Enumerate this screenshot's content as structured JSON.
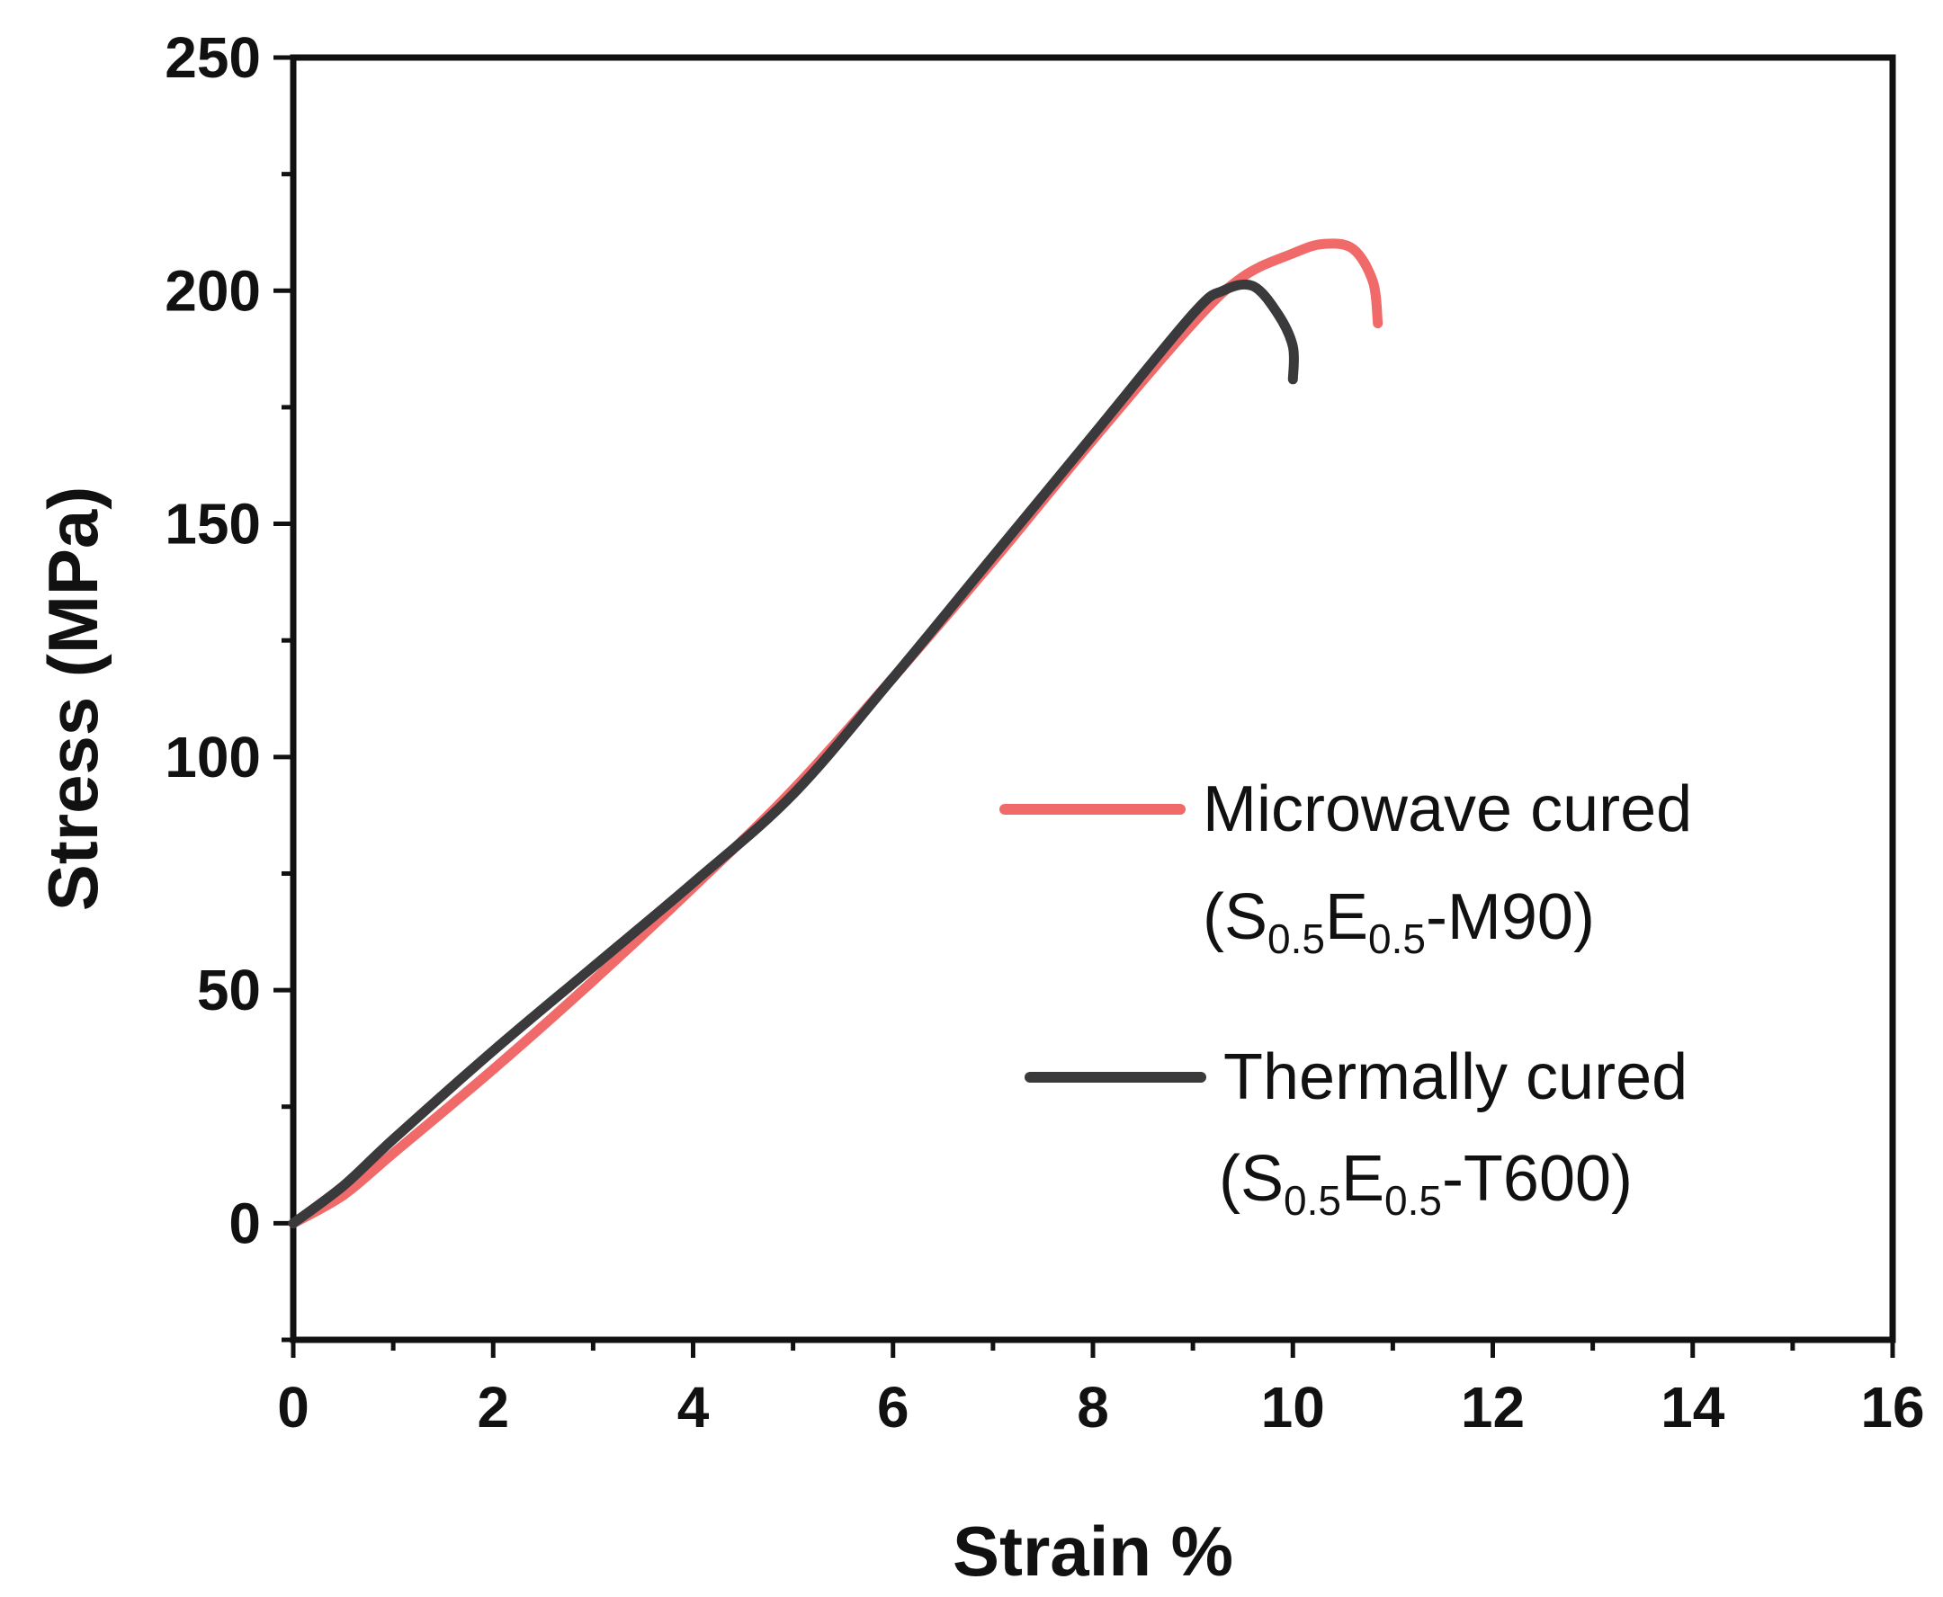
{
  "chart_data": {
    "type": "line",
    "title": "",
    "xlabel": "Strain %",
    "ylabel": "Stress (MPa)",
    "xlim": [
      0,
      16
    ],
    "ylim": [
      -25,
      250
    ],
    "x_ticks": [
      0,
      2,
      4,
      6,
      8,
      10,
      12,
      14,
      16
    ],
    "y_ticks": [
      0,
      50,
      100,
      150,
      200,
      250
    ],
    "x_tick_labels": [
      "0",
      "2",
      "4",
      "6",
      "8",
      "10",
      "12",
      "14",
      "16"
    ],
    "y_tick_labels": [
      "0",
      "50",
      "100",
      "150",
      "200",
      "250"
    ],
    "grid": false,
    "legend_position": "middle-right",
    "series": [
      {
        "name": "Microwave cured (S0.5E0.5-M90)",
        "legend_line1": "Microwave cured",
        "legend_open": "(S",
        "legend_sub1": "0.5",
        "legend_mid": "E",
        "legend_sub2": "0.5",
        "legend_close": "-M90)",
        "color": "#f06a6a",
        "x": [
          0,
          0.5,
          1,
          2,
          3,
          4,
          5,
          6,
          7,
          8,
          9,
          9.5,
          10,
          10.3,
          10.6,
          10.8,
          10.85
        ],
        "y": [
          0,
          6,
          15,
          33,
          52,
          72,
          93,
          117,
          142,
          168,
          193,
          203,
          208,
          210,
          209,
          202,
          193
        ]
      },
      {
        "name": "Thermally cured (S0.5E0.5-T600)",
        "legend_line1": "Thermally cured",
        "legend_open": "(S",
        "legend_sub1": "0.5",
        "legend_mid": "E",
        "legend_sub2": "0.5",
        "legend_close": "-T600)",
        "color": "#3a3a3c",
        "x": [
          0,
          0.5,
          1,
          2,
          3,
          4,
          5,
          6,
          7,
          8,
          9,
          9.3,
          9.6,
          9.85,
          10,
          10
        ],
        "y": [
          0,
          8,
          18,
          37,
          55,
          73,
          92,
          117,
          143,
          169,
          195,
          200,
          201,
          195,
          188,
          181
        ]
      }
    ]
  }
}
